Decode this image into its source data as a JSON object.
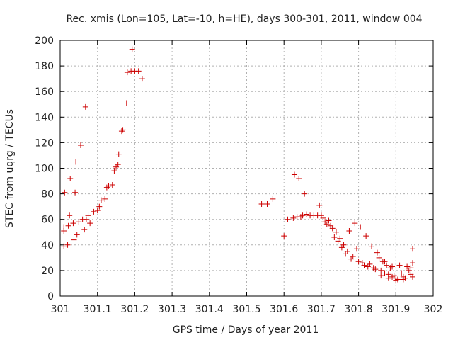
{
  "chart_data": {
    "type": "scatter",
    "title": "Rec. xmis (Lon=105, Lat=-10, h=HE), days 300-301, 2011, window 004",
    "xlabel": "GPS time / Days of year 2011",
    "ylabel": "STEC from uqrg / TECUs",
    "xlim": [
      301,
      302
    ],
    "ylim": [
      0,
      200
    ],
    "x_ticks": [
      "301",
      "301.1",
      "301.2",
      "301.3",
      "301.4",
      "301.5",
      "301.6",
      "301.7",
      "301.8",
      "301.9",
      "302"
    ],
    "y_ticks": [
      "0",
      "20",
      "40",
      "60",
      "80",
      "100",
      "120",
      "140",
      "160",
      "180",
      "200"
    ],
    "grid": true,
    "marker": "+",
    "colors": {
      "marker": "#cc0000",
      "grid": "#b0b0b0",
      "axis": "#000000"
    },
    "points": [
      [
        301.01,
        39
      ],
      [
        301.01,
        51
      ],
      [
        301.01,
        54
      ],
      [
        301.012,
        81
      ],
      [
        301.02,
        40
      ],
      [
        301.022,
        55
      ],
      [
        301.025,
        63
      ],
      [
        301.027,
        92
      ],
      [
        301.035,
        57
      ],
      [
        301.037,
        44
      ],
      [
        301.04,
        81
      ],
      [
        301.042,
        105
      ],
      [
        301.045,
        48
      ],
      [
        301.05,
        58
      ],
      [
        301.055,
        118
      ],
      [
        301.06,
        60
      ],
      [
        301.065,
        52
      ],
      [
        301.068,
        148
      ],
      [
        301.07,
        60
      ],
      [
        301.075,
        63
      ],
      [
        301.08,
        57
      ],
      [
        301.09,
        66
      ],
      [
        301.1,
        67
      ],
      [
        301.105,
        70
      ],
      [
        301.11,
        75
      ],
      [
        301.12,
        76
      ],
      [
        301.125,
        85
      ],
      [
        301.13,
        86
      ],
      [
        301.14,
        87
      ],
      [
        301.145,
        98
      ],
      [
        301.15,
        101
      ],
      [
        301.155,
        103
      ],
      [
        301.157,
        111
      ],
      [
        301.165,
        129
      ],
      [
        301.168,
        130
      ],
      [
        301.178,
        151
      ],
      [
        301.18,
        175
      ],
      [
        301.19,
        176
      ],
      [
        301.193,
        193
      ],
      [
        301.2,
        176
      ],
      [
        301.21,
        176
      ],
      [
        301.22,
        170
      ],
      [
        301.54,
        72
      ],
      [
        301.555,
        72
      ],
      [
        301.57,
        76
      ],
      [
        301.6,
        47
      ],
      [
        301.61,
        60
      ],
      [
        301.625,
        61
      ],
      [
        301.628,
        95
      ],
      [
        301.635,
        62
      ],
      [
        301.64,
        92
      ],
      [
        301.645,
        62
      ],
      [
        301.65,
        63
      ],
      [
        301.655,
        80
      ],
      [
        301.66,
        64
      ],
      [
        301.67,
        63
      ],
      [
        301.68,
        63
      ],
      [
        301.69,
        63
      ],
      [
        301.695,
        71
      ],
      [
        301.7,
        63
      ],
      [
        301.705,
        61
      ],
      [
        301.71,
        58
      ],
      [
        301.715,
        56
      ],
      [
        301.72,
        59
      ],
      [
        301.725,
        55
      ],
      [
        301.73,
        53
      ],
      [
        301.735,
        46
      ],
      [
        301.74,
        50
      ],
      [
        301.745,
        43
      ],
      [
        301.75,
        45
      ],
      [
        301.755,
        38
      ],
      [
        301.76,
        40
      ],
      [
        301.765,
        33
      ],
      [
        301.77,
        35
      ],
      [
        301.775,
        51
      ],
      [
        301.78,
        29
      ],
      [
        301.785,
        31
      ],
      [
        301.79,
        57
      ],
      [
        301.795,
        37
      ],
      [
        301.8,
        27
      ],
      [
        301.805,
        54
      ],
      [
        301.81,
        26
      ],
      [
        301.815,
        24
      ],
      [
        301.82,
        47
      ],
      [
        301.825,
        23
      ],
      [
        301.83,
        25
      ],
      [
        301.835,
        39
      ],
      [
        301.84,
        22
      ],
      [
        301.845,
        21
      ],
      [
        301.85,
        34
      ],
      [
        301.855,
        30
      ],
      [
        301.86,
        20
      ],
      [
        301.865,
        27
      ],
      [
        301.87,
        18
      ],
      [
        301.875,
        24
      ],
      [
        301.88,
        17
      ],
      [
        301.885,
        22
      ],
      [
        301.89,
        15
      ],
      [
        301.895,
        16
      ],
      [
        301.9,
        14
      ],
      [
        301.905,
        13
      ],
      [
        301.91,
        24
      ],
      [
        301.915,
        18
      ],
      [
        301.92,
        15
      ],
      [
        301.925,
        14
      ],
      [
        301.93,
        23
      ],
      [
        301.935,
        20
      ],
      [
        301.94,
        17
      ],
      [
        301.945,
        37
      ],
      [
        301.945,
        26
      ],
      [
        301.945,
        15
      ],
      [
        301.86,
        16
      ],
      [
        301.88,
        14
      ],
      [
        301.9,
        12
      ],
      [
        301.92,
        13
      ],
      [
        301.94,
        22
      ],
      [
        301.87,
        27
      ],
      [
        301.89,
        23
      ]
    ]
  }
}
